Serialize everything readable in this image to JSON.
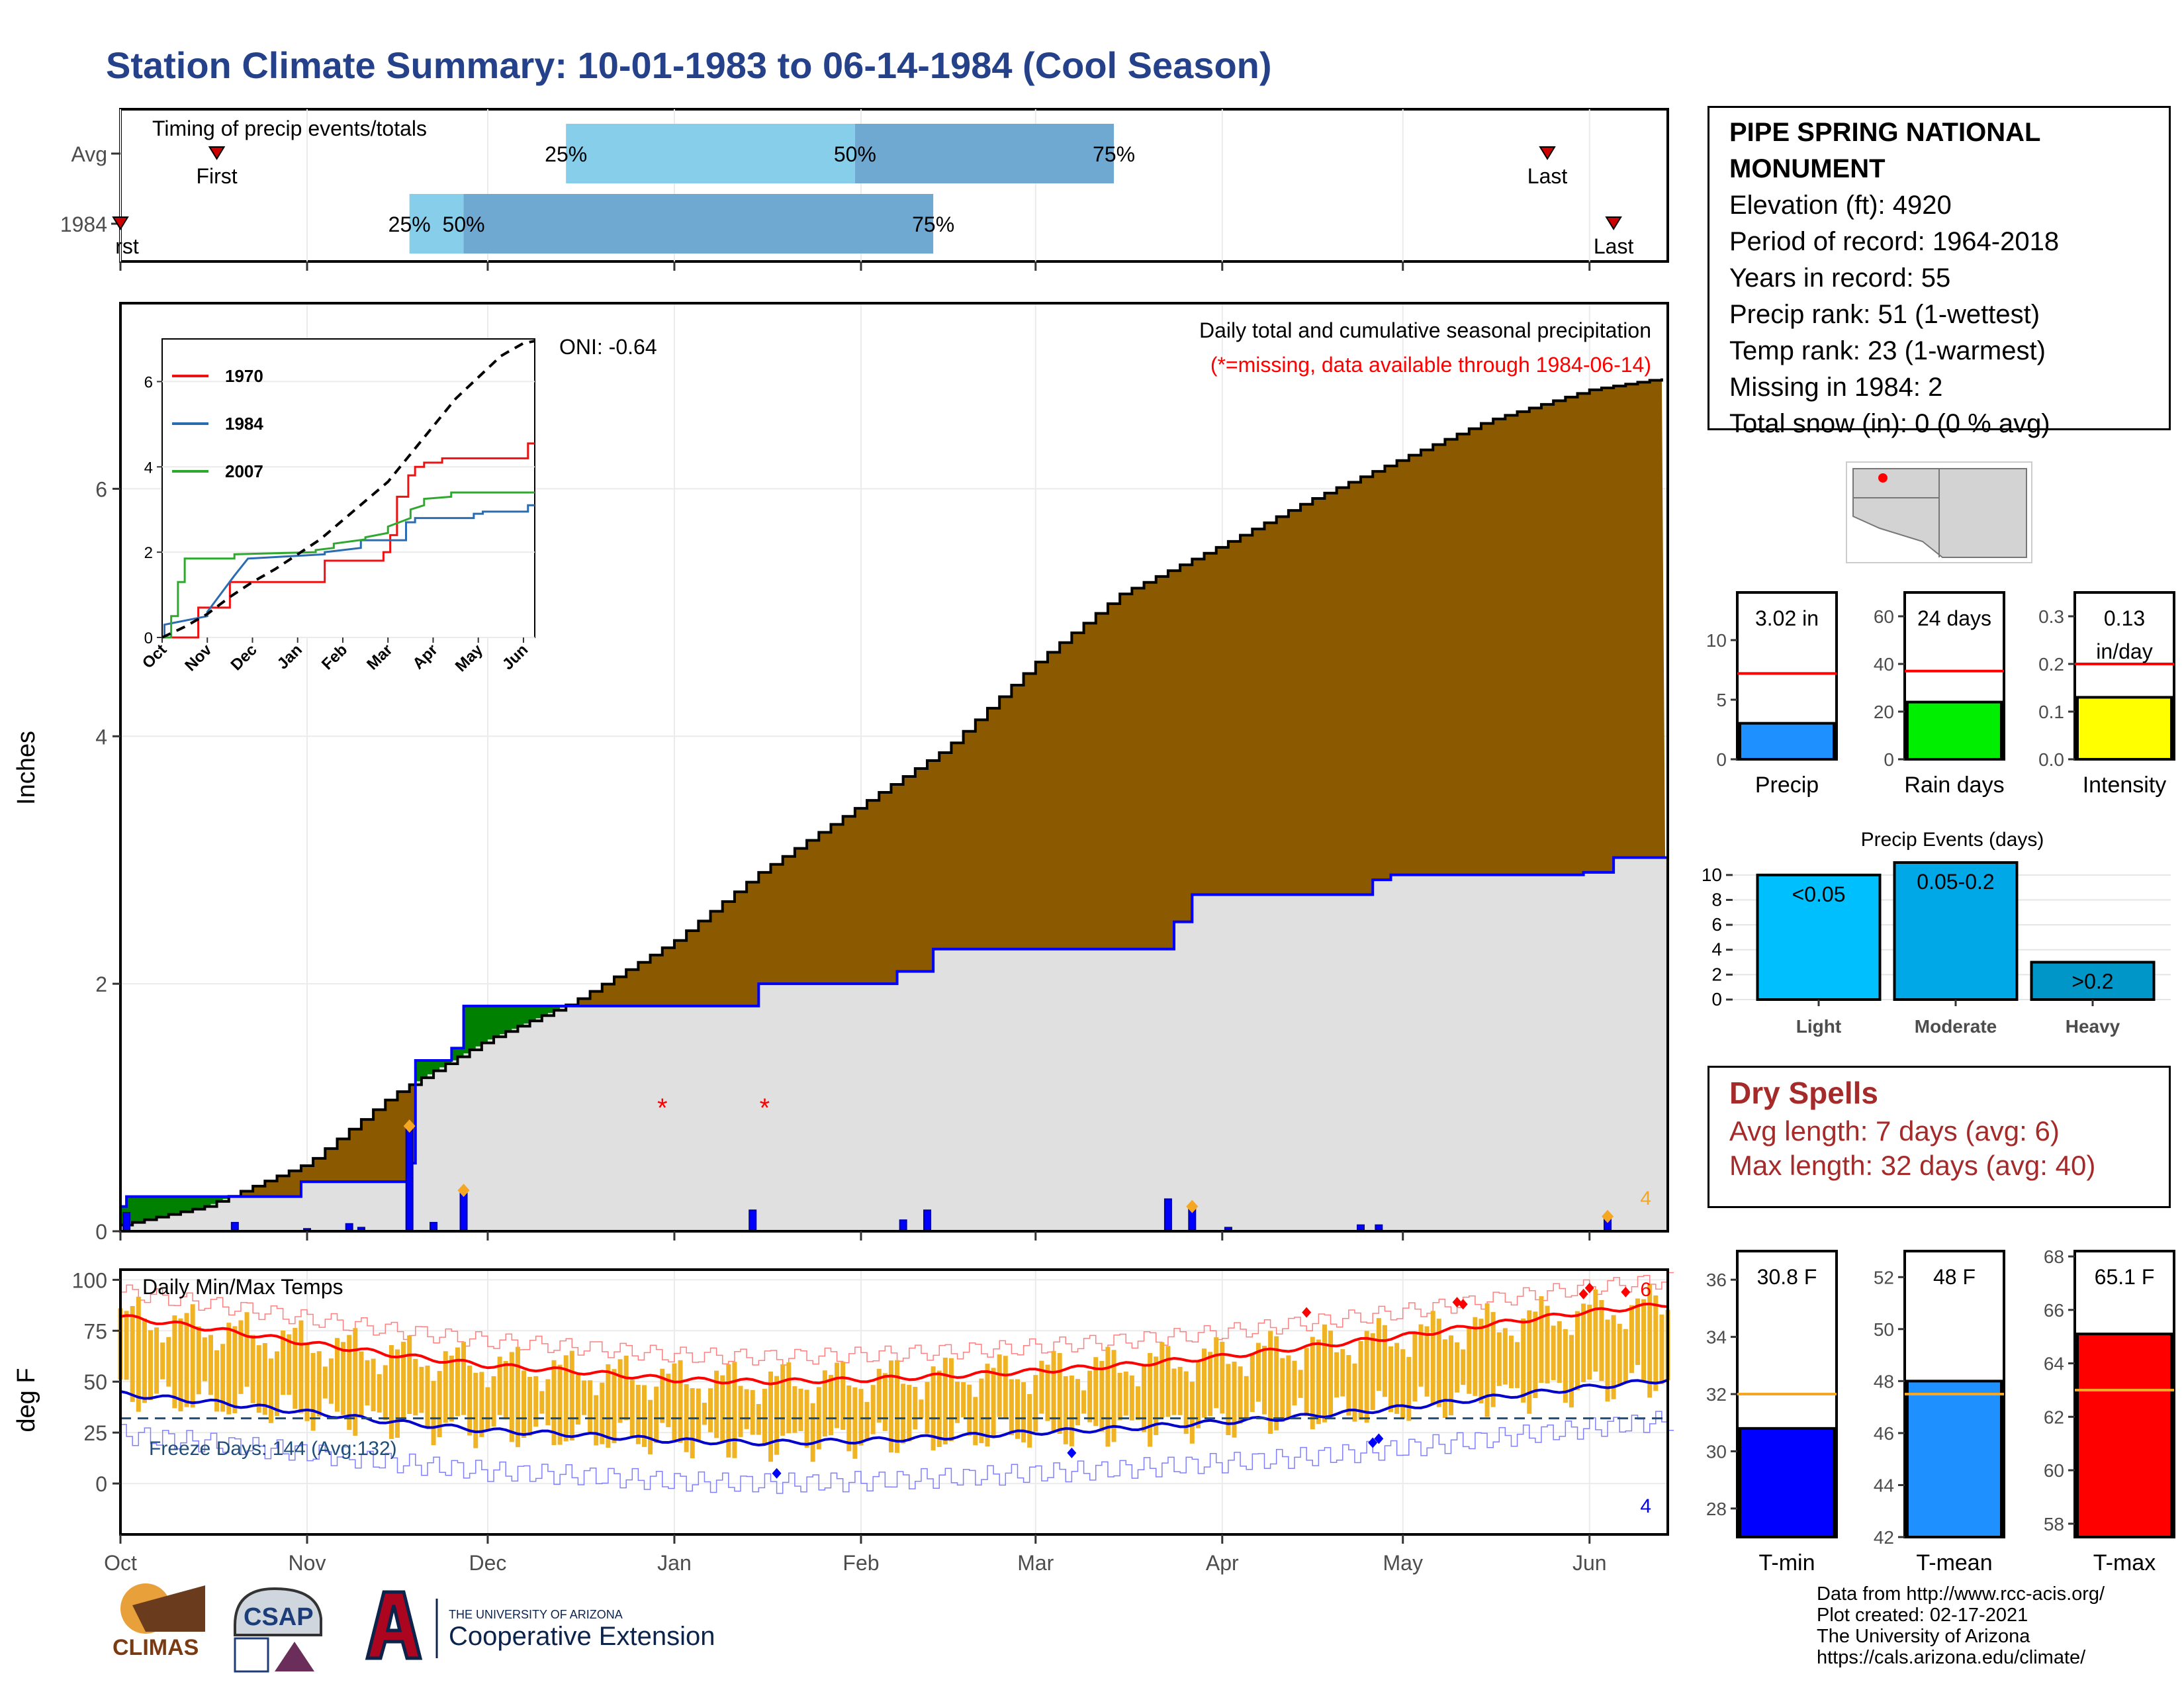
{
  "title": "Station Climate Summary: 10-01-1983 to 06-14-1984 (Cool Season)",
  "station": {
    "name": "PIPE SPRING NATIONAL MONUMENT",
    "lines": [
      "Elevation (ft): 4920",
      "Period of record: 1964-2018",
      "Years in record: 55",
      "Precip rank: 51 (1-wettest)",
      "Temp rank: 23 (1-warmest)",
      "Missing in 1984: 2",
      "Total snow (in): 0 (0 % avg)"
    ]
  },
  "dry_spells": {
    "title": "Dry Spells",
    "avg_length": "Avg length: 7 days (avg: 6)",
    "max_length": "Max length: 32 days (avg: 40)"
  },
  "credits": [
    "Data from http://www.rcc-acis.org/",
    "Plot created: 02-17-2021",
    "The University of Arizona",
    "https://cals.arizona.edu/climate/"
  ],
  "logos": {
    "climas": "CLIMAS",
    "csap": "CSAP",
    "ua_line1": "THE UNIVERSITY OF ARIZONA",
    "ua_line2": "Cooperative Extension"
  },
  "colors": {
    "avg_cumulative": "#8b5a00",
    "observed_cumulative": "#e0e0e0",
    "surplus": "#008000",
    "daily_precip": "#0000ff",
    "daily_range": "#f0b323",
    "tmax_avg": "#ff0000",
    "tmin_avg": "#0000cc"
  },
  "chart_data": [
    {
      "id": "timing",
      "type": "bar",
      "title": "Timing of precip events/totals",
      "rows": [
        {
          "label": "Avg",
          "first": "Oct 17",
          "p25": "Dec 14",
          "p50": "Jan 31",
          "p75": "Mar 14",
          "last": "May 25"
        },
        {
          "label": "1984",
          "first": "Oct 1",
          "p25": "Nov 18",
          "p50": "Nov 27",
          "p75": "Feb 13",
          "last": "Jun 5"
        }
      ],
      "marker_labels": {
        "first": "First",
        "last": "Last",
        "p25": "25%",
        "p50": "50%",
        "p75": "75%"
      },
      "first_1984_label": "rst"
    },
    {
      "id": "precip",
      "type": "area",
      "annotation_title": "Daily total and cumulative seasonal precipitation",
      "annotation_missing": "(*=missing, data available through 1984-06-14)",
      "oni": "ONI: -0.64",
      "ylabel": "Inches",
      "ylim": [
        0,
        7.5
      ],
      "yticks": [
        0,
        2,
        4,
        6
      ],
      "xticks": [
        "Oct",
        "Nov",
        "Dec",
        "Jan",
        "Feb",
        "Mar",
        "Apr",
        "May",
        "Jun"
      ],
      "avg_cumulative": {
        "x": [
          "Oct 1",
          "Oct 15",
          "Nov 1",
          "Nov 15",
          "Dec 1",
          "Dec 15",
          "Jan 1",
          "Jan 15",
          "Feb 1",
          "Feb 15",
          "Mar 1",
          "Mar 15",
          "Apr 1",
          "Apr 15",
          "May 1",
          "May 15",
          "Jun 1",
          "Jun 14"
        ],
        "y": [
          0.05,
          0.2,
          0.55,
          1.1,
          1.55,
          1.85,
          2.35,
          2.9,
          3.45,
          3.9,
          4.6,
          5.15,
          5.55,
          5.9,
          6.25,
          6.55,
          6.8,
          6.9
        ]
      },
      "observed_cumulative": {
        "x": [
          "Oct 1",
          "Oct 2",
          "Oct 31",
          "Nov 18",
          "Nov 19",
          "Nov 25",
          "Nov 27",
          "Dec 1",
          "Jan 15",
          "Feb 7",
          "Feb 13",
          "Mar 24",
          "Mar 27",
          "Apr 26",
          "Apr 29",
          "May 31",
          "Jun 5",
          "Jun 14"
        ],
        "y": [
          0.2,
          0.28,
          0.4,
          0.55,
          1.38,
          1.48,
          1.82,
          1.82,
          2.0,
          2.1,
          2.28,
          2.5,
          2.72,
          2.84,
          2.88,
          2.9,
          3.02,
          3.02
        ]
      },
      "daily_precip": [
        {
          "x": "Oct 2",
          "y": 0.15
        },
        {
          "x": "Oct 20",
          "y": 0.07
        },
        {
          "x": "Nov 1",
          "y": 0.02
        },
        {
          "x": "Nov 8",
          "y": 0.06
        },
        {
          "x": "Nov 10",
          "y": 0.03
        },
        {
          "x": "Nov 18",
          "y": 0.85
        },
        {
          "x": "Nov 22",
          "y": 0.07
        },
        {
          "x": "Nov 27",
          "y": 0.33
        },
        {
          "x": "Jan 14",
          "y": 0.17
        },
        {
          "x": "Feb 8",
          "y": 0.09
        },
        {
          "x": "Feb 12",
          "y": 0.17
        },
        {
          "x": "Mar 23",
          "y": 0.26
        },
        {
          "x": "Mar 27",
          "y": 0.2
        },
        {
          "x": "Apr 2",
          "y": 0.03
        },
        {
          "x": "Apr 24",
          "y": 0.05
        },
        {
          "x": "Apr 27",
          "y": 0.05
        },
        {
          "x": "Jun 4",
          "y": 0.12
        }
      ],
      "extreme_markers": [
        {
          "x": "Nov 18",
          "y": 0.85
        },
        {
          "x": "Nov 27",
          "y": 0.33
        },
        {
          "x": "Mar 27",
          "y": 0.2
        },
        {
          "x": "Jun 4",
          "y": 0.12
        }
      ],
      "extreme_count": "4",
      "missing_markers": [
        {
          "x": "Dec 30",
          "y": 1.0
        },
        {
          "x": "Jan 16",
          "y": 1.0
        }
      ]
    },
    {
      "id": "inset",
      "type": "line",
      "ylim": [
        0,
        7
      ],
      "yticks": [
        0,
        2,
        4,
        6
      ],
      "xticks": [
        "Oct",
        "Nov",
        "Dec",
        "Jan",
        "Feb",
        "Mar",
        "Apr",
        "May",
        "Jun"
      ],
      "series": [
        {
          "name": "1970",
          "color": "#ee1111",
          "x": [
            0,
            0.8,
            0.8,
            1.5,
            1.5,
            3.6,
            3.6,
            4.9,
            4.9,
            5.05,
            5.05,
            5.2,
            5.2,
            5.45,
            5.45,
            5.6,
            5.6,
            5.8,
            5.8,
            6.2,
            6.2,
            8.1,
            8.1,
            8.25
          ],
          "y": [
            0,
            0,
            0.7,
            0.7,
            1.3,
            1.3,
            1.8,
            1.8,
            2.0,
            2.0,
            2.4,
            2.4,
            3.3,
            3.3,
            3.8,
            3.8,
            4.0,
            4.0,
            4.1,
            4.1,
            4.2,
            4.2,
            4.55,
            4.55
          ]
        },
        {
          "name": "1984",
          "color": "#2b6cb0",
          "x": [
            0,
            0.05,
            0.05,
            1.0,
            1.0,
            1.6,
            1.6,
            1.9,
            1.9,
            3.6,
            3.6,
            4.4,
            4.4,
            5.4,
            5.4,
            5.6,
            5.6,
            6.9,
            6.9,
            7.1,
            7.1,
            8.1,
            8.1,
            8.25
          ],
          "y": [
            0,
            0,
            0.3,
            0.5,
            0.6,
            1.45,
            1.45,
            1.85,
            1.85,
            1.95,
            2.0,
            2.1,
            2.28,
            2.28,
            2.7,
            2.7,
            2.8,
            2.8,
            2.9,
            2.9,
            2.95,
            2.95,
            3.1,
            3.1
          ]
        },
        {
          "name": "2007",
          "color": "#2fa82f",
          "x": [
            0,
            0.2,
            0.2,
            0.35,
            0.35,
            0.5,
            0.5,
            1.6,
            1.6,
            3.4,
            3.4,
            3.8,
            3.8,
            4.5,
            4.5,
            5.0,
            5.0,
            5.5,
            5.5,
            5.8,
            5.8,
            6.4,
            6.4,
            8.25
          ],
          "y": [
            0,
            0,
            0.5,
            0.5,
            1.3,
            1.3,
            1.85,
            1.85,
            1.95,
            2.0,
            2.05,
            2.1,
            2.2,
            2.3,
            2.35,
            2.45,
            2.6,
            2.8,
            3.0,
            3.1,
            3.25,
            3.3,
            3.4,
            3.4
          ]
        },
        {
          "name": "",
          "color": "#000000",
          "dash": true,
          "x": [
            0,
            0.5,
            1,
            1.5,
            2,
            2.5,
            3,
            3.5,
            4,
            4.5,
            5,
            5.5,
            6,
            6.5,
            7,
            7.5,
            8,
            8.25
          ],
          "y": [
            0,
            0.25,
            0.55,
            0.95,
            1.3,
            1.6,
            1.95,
            2.3,
            2.75,
            3.2,
            3.65,
            4.3,
            4.95,
            5.6,
            6.1,
            6.6,
            6.9,
            6.95
          ]
        }
      ],
      "legend": [
        "1970",
        "1984",
        "2007"
      ]
    },
    {
      "id": "temps",
      "type": "bar",
      "title": "Daily Min/Max Temps",
      "ylabel": "deg F",
      "ylim": [
        -25,
        105
      ],
      "yticks": [
        0,
        25,
        50,
        75,
        100
      ],
      "xticks": [
        "Oct",
        "Nov",
        "Dec",
        "Jan",
        "Feb",
        "Mar",
        "Apr",
        "May",
        "Jun"
      ],
      "freeze_line": 32,
      "freeze_label": "Freeze Days: 144 (Avg:132)",
      "record_high_count": "6",
      "record_low_count": "4",
      "tmax_avg": {
        "x": [
          0,
          15,
          31,
          46,
          61,
          76,
          92,
          107,
          123,
          138,
          151,
          166,
          182,
          197,
          212,
          227,
          243,
          257
        ],
        "y": [
          82,
          76,
          69,
          63,
          58,
          55,
          51,
          50,
          51,
          53,
          55,
          58,
          62,
          67,
          72,
          78,
          84,
          88
        ]
      },
      "tmin_avg": {
        "x": [
          0,
          15,
          31,
          46,
          61,
          76,
          92,
          107,
          123,
          138,
          151,
          166,
          182,
          197,
          212,
          227,
          243,
          257
        ],
        "y": [
          44,
          40,
          35,
          30,
          26,
          24,
          21,
          20,
          21,
          23,
          25,
          27,
          30,
          33,
          37,
          42,
          47,
          51
        ]
      },
      "record_high_markers": [
        {
          "x": 197,
          "y": 84
        },
        {
          "x": 222,
          "y": 89
        },
        {
          "x": 223,
          "y": 88
        },
        {
          "x": 243,
          "y": 93
        },
        {
          "x": 244,
          "y": 96
        },
        {
          "x": 250,
          "y": 94
        }
      ],
      "record_low_markers": [
        {
          "x": 109,
          "y": 5
        },
        {
          "x": 158,
          "y": 15
        },
        {
          "x": 208,
          "y": 20
        },
        {
          "x": 209,
          "y": 22
        }
      ]
    },
    {
      "id": "summary_precip",
      "type": "bar",
      "panels": [
        {
          "label": "Precip",
          "value": 3.02,
          "avg": 7.2,
          "ylim": [
            0,
            14
          ],
          "yticks": [
            0,
            5,
            10
          ],
          "value_label": "3.02 in",
          "color": "#1e90ff"
        },
        {
          "label": "Rain days",
          "value": 24,
          "avg": 37,
          "ylim": [
            0,
            70
          ],
          "yticks": [
            0,
            20,
            40,
            60
          ],
          "value_label": "24 days",
          "color": "#00ee00"
        },
        {
          "label": "Intensity",
          "value": 0.13,
          "avg": 0.2,
          "ylim": [
            0,
            0.35
          ],
          "yticks": [
            0.0,
            0.1,
            0.2,
            0.3
          ],
          "value_label": "0.13",
          "value_label2": "in/day",
          "color": "#ffff00"
        }
      ]
    },
    {
      "id": "precip_events",
      "type": "bar",
      "title": "Precip Events (days)",
      "categories": [
        "Light",
        "Moderate",
        "Heavy"
      ],
      "bar_labels": [
        "<0.05",
        "0.05-0.2",
        ">0.2"
      ],
      "values": [
        10,
        11,
        3
      ],
      "ylim": [
        0,
        11
      ],
      "yticks": [
        0,
        2,
        4,
        6,
        8,
        10
      ],
      "colors": [
        "#00bfff",
        "#00a8e8",
        "#0096c7"
      ]
    },
    {
      "id": "summary_temp",
      "type": "bar",
      "panels": [
        {
          "label": "T-min",
          "value": 30.8,
          "avg": 32.0,
          "ylim": [
            27,
            37
          ],
          "yticks": [
            28,
            30,
            32,
            34,
            36
          ],
          "value_label": "30.8 F",
          "color": "#0000ff"
        },
        {
          "label": "T-mean",
          "value": 48,
          "avg": 47.5,
          "ylim": [
            42,
            53
          ],
          "yticks": [
            42,
            44,
            46,
            48,
            50,
            52
          ],
          "value_label": "48 F",
          "color": "#1e90ff"
        },
        {
          "label": "T-max",
          "value": 65.1,
          "avg": 63.0,
          "ylim": [
            57.5,
            68.2
          ],
          "yticks": [
            58,
            60,
            62,
            64,
            66,
            68
          ],
          "value_label": "65.1 F",
          "color": "#ff0000"
        }
      ]
    }
  ]
}
